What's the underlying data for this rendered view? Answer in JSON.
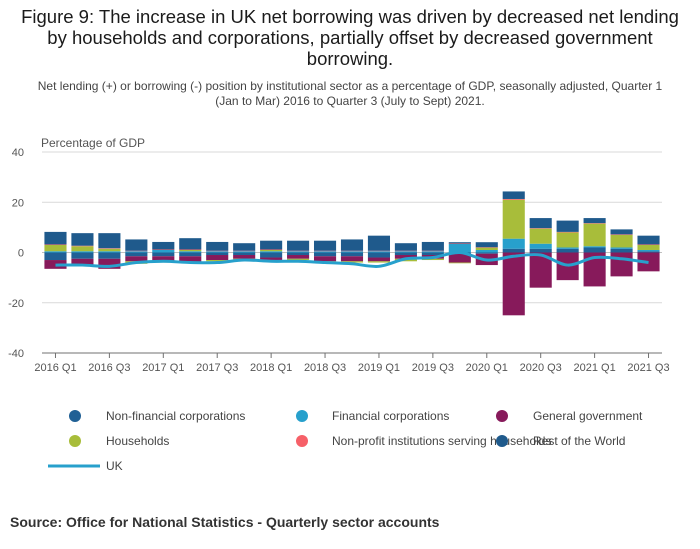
{
  "title": "Figure 9: The increase in UK net borrowing was driven by decreased net lending by households and corporations, partially offset by decreased government borrowing.",
  "subtitle": "Net lending (+) or borrowing (-) position by institutional sector as a percentage of GDP, seasonally adjusted, Quarter 1 (Jan to Mar) 2016 to Quarter 3 (July to Sept) 2021.",
  "source": "Source: Office for National Statistics - Quarterly sector accounts",
  "colors": {
    "nfc": "#206095",
    "fc": "#27a0cc",
    "gg": "#871a5b",
    "hh": "#a8bd3a",
    "npish": "#f66068",
    "row": "#1f5a8c",
    "uk": "#27a0cc",
    "grid": "#d9d9d9",
    "axis": "#707070"
  },
  "chart_data": {
    "type": "bar",
    "stacked": true,
    "ylabel": "Percentage of GDP",
    "ylim": [
      -40,
      40
    ],
    "yticks": [
      -40,
      -20,
      0,
      20,
      40
    ],
    "grid": true,
    "legend_position": "bottom",
    "categories": [
      "2016 Q1",
      "2016 Q2",
      "2016 Q3",
      "2016 Q4",
      "2017 Q1",
      "2017 Q2",
      "2017 Q3",
      "2017 Q4",
      "2018 Q1",
      "2018 Q2",
      "2018 Q3",
      "2018 Q4",
      "2019 Q1",
      "2019 Q2",
      "2019 Q3",
      "2019 Q4",
      "2020 Q1",
      "2020 Q2",
      "2020 Q3",
      "2020 Q4",
      "2021 Q1",
      "2021 Q2",
      "2021 Q3"
    ],
    "tick_labels": [
      "2016 Q1",
      "2016 Q3",
      "2017 Q1",
      "2017 Q3",
      "2018 Q1",
      "2018 Q3",
      "2019 Q1",
      "2019 Q3",
      "2020 Q1",
      "2020 Q3",
      "2021 Q1",
      "2021 Q3"
    ],
    "series": [
      {
        "name": "Non-financial corporations",
        "key": "nfc",
        "kind": "bar",
        "values": [
          -3.0,
          -2.5,
          -2.5,
          -1.5,
          -1.5,
          -1.5,
          -1.0,
          -1.0,
          -2.0,
          -1.0,
          -1.5,
          -1.5,
          -2.0,
          -1.0,
          -1.0,
          -0.5,
          -0.5,
          1.5,
          1.5,
          1.5,
          2.0,
          1.5,
          0.5
        ]
      },
      {
        "name": "Financial corporations",
        "key": "fc",
        "kind": "bar",
        "values": [
          0.5,
          0.5,
          0.5,
          0.5,
          1.0,
          0.5,
          0.5,
          0.5,
          0.5,
          0.5,
          0.5,
          0.5,
          0.5,
          0.5,
          0.5,
          3.5,
          1.0,
          4.0,
          2.0,
          0.5,
          0.5,
          0.5,
          0.5
        ]
      },
      {
        "name": "General government",
        "key": "gg",
        "kind": "bar",
        "values": [
          -3.5,
          -3.0,
          -4.0,
          -2.0,
          -2.0,
          -2.5,
          -2.0,
          -1.5,
          -1.5,
          -1.5,
          -2.0,
          -2.0,
          -1.5,
          -1.5,
          -1.5,
          -3.5,
          -4.5,
          -25.0,
          -14.0,
          -11.0,
          -13.5,
          -9.5,
          -7.5
        ]
      },
      {
        "name": "Households",
        "key": "hh",
        "kind": "bar",
        "values": [
          2.5,
          2.0,
          1.0,
          -1.0,
          -0.5,
          0.5,
          -0.5,
          -0.5,
          0.5,
          -0.5,
          -0.5,
          -0.5,
          -0.5,
          -1.0,
          -0.5,
          -0.3,
          1.0,
          15.5,
          6.0,
          6.0,
          9.0,
          5.0,
          2.0
        ]
      },
      {
        "name": "Non-profit institutions serving households",
        "key": "npish",
        "kind": "bar",
        "values": [
          0.2,
          0.2,
          0.2,
          0.2,
          0.2,
          0.2,
          0.2,
          0.2,
          0.2,
          0.2,
          0.2,
          0.2,
          0.2,
          0.2,
          0.2,
          0.1,
          0.1,
          0.3,
          0.2,
          0.2,
          0.2,
          0.2,
          0.2
        ]
      },
      {
        "name": "Rest of the World",
        "key": "row",
        "kind": "bar",
        "values": [
          5.0,
          5.0,
          6.0,
          4.5,
          3.0,
          4.5,
          3.5,
          3.0,
          3.5,
          4.0,
          4.0,
          4.5,
          6.0,
          3.0,
          3.5,
          0.5,
          2.0,
          3.0,
          4.0,
          4.5,
          2.0,
          2.0,
          3.5
        ]
      },
      {
        "name": "UK",
        "key": "uk",
        "kind": "line",
        "values": [
          -5.0,
          -5.0,
          -5.5,
          -4.0,
          -3.5,
          -4.0,
          -4.0,
          -3.0,
          -3.5,
          -3.5,
          -4.0,
          -4.5,
          -5.5,
          -2.5,
          -2.0,
          0.0,
          -3.0,
          -1.5,
          -1.0,
          -5.0,
          -2.0,
          -2.5,
          -4.0
        ]
      }
    ]
  }
}
